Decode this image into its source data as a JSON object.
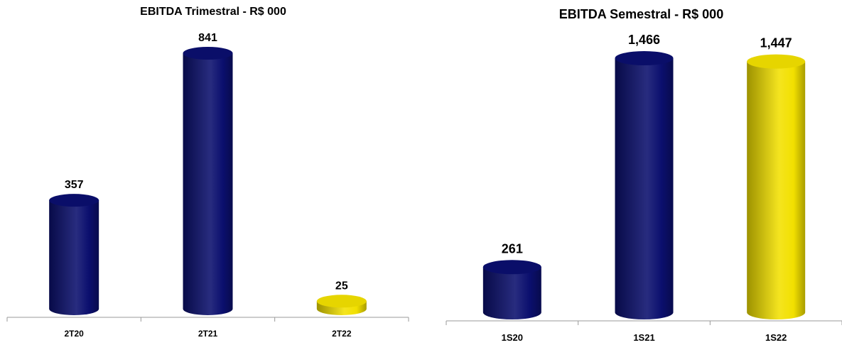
{
  "chart_data": [
    {
      "type": "bar",
      "title": "EBITDA Trimestral - R$ 000",
      "categories": [
        "2T20",
        "2T21",
        "2T22"
      ],
      "values": [
        357,
        841,
        25
      ],
      "value_labels": [
        "357",
        "841",
        "25"
      ],
      "colors": [
        "#0b0f6e",
        "#0b0f6e",
        "#f2e000"
      ],
      "ylim": [
        0,
        841
      ],
      "grid": false,
      "legend": "none"
    },
    {
      "type": "bar",
      "title": "EBITDA Semestral - R$ 000",
      "categories": [
        "1S20",
        "1S21",
        "1S22"
      ],
      "values": [
        261,
        1466,
        1447
      ],
      "value_labels": [
        "261",
        "1,466",
        "1,447"
      ],
      "colors": [
        "#0b0f6e",
        "#0b0f6e",
        "#f2e000"
      ],
      "ylim": [
        0,
        1466
      ],
      "grid": false,
      "legend": "none"
    }
  ]
}
